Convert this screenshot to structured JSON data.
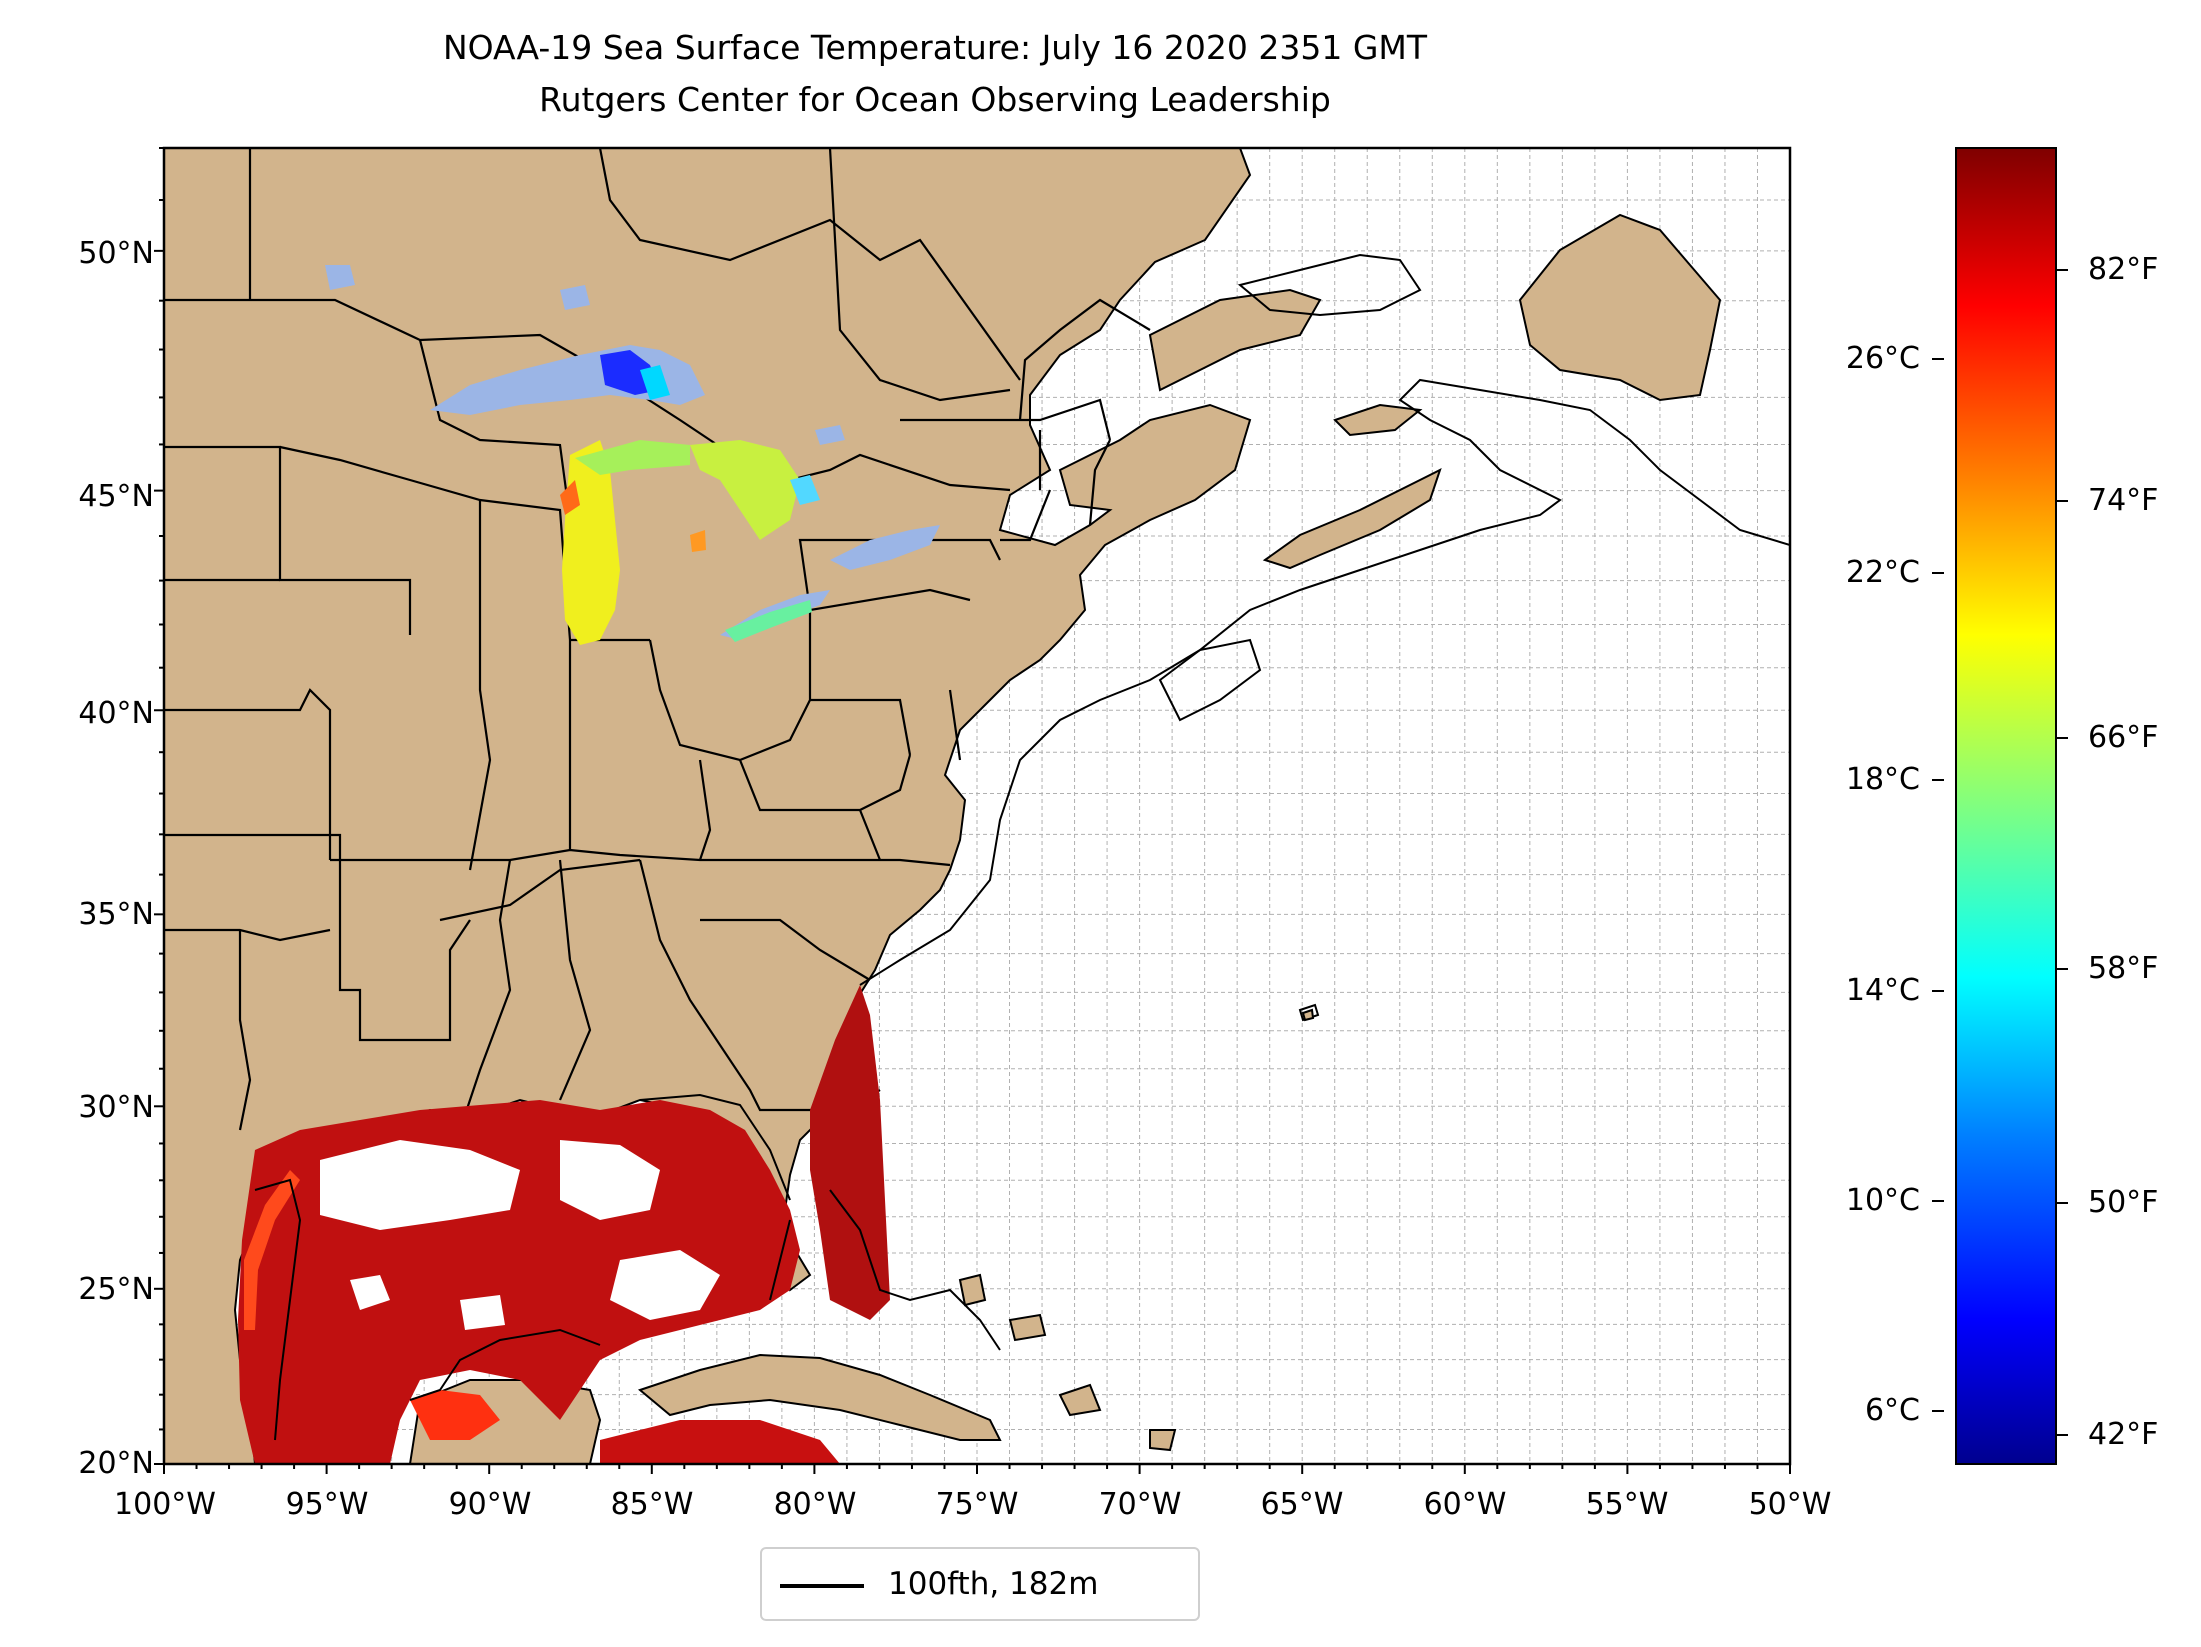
{
  "title": {
    "line1": "NOAA-19 Sea Surface Temperature: July 16 2020 2351 GMT",
    "line2": "Rutgers Center for Ocean Observing Leadership"
  },
  "map": {
    "lon_range": [
      -100,
      -50
    ],
    "lat_range": [
      20,
      52
    ],
    "land_color": "#d2b48c",
    "lake_color": "#9bb5e6",
    "gridlines": true,
    "lon_tick_labels": [
      "100°W",
      "95°W",
      "90°W",
      "85°W",
      "80°W",
      "75°W",
      "70°W",
      "65°W",
      "60°W",
      "55°W",
      "50°W"
    ],
    "lat_tick_labels": [
      "20°N",
      "25°N",
      "30°N",
      "35°N",
      "40°N",
      "45°N",
      "50°N"
    ]
  },
  "colorbar": {
    "colormap": "jet",
    "fahrenheit_labels": [
      "82°F",
      "74°F",
      "66°F",
      "58°F",
      "50°F",
      "42°F"
    ],
    "celsius_labels": [
      "26°C",
      "22°C",
      "18°C",
      "14°C",
      "10°C",
      "6°C"
    ],
    "colors": [
      "#7f0000",
      "#ff0000",
      "#ff8000",
      "#ffff00",
      "#80ff80",
      "#00ffff",
      "#0080ff",
      "#0000ff",
      "#00008f"
    ]
  },
  "legend": {
    "label": "100fth, 182m",
    "line_color": "#000000"
  }
}
